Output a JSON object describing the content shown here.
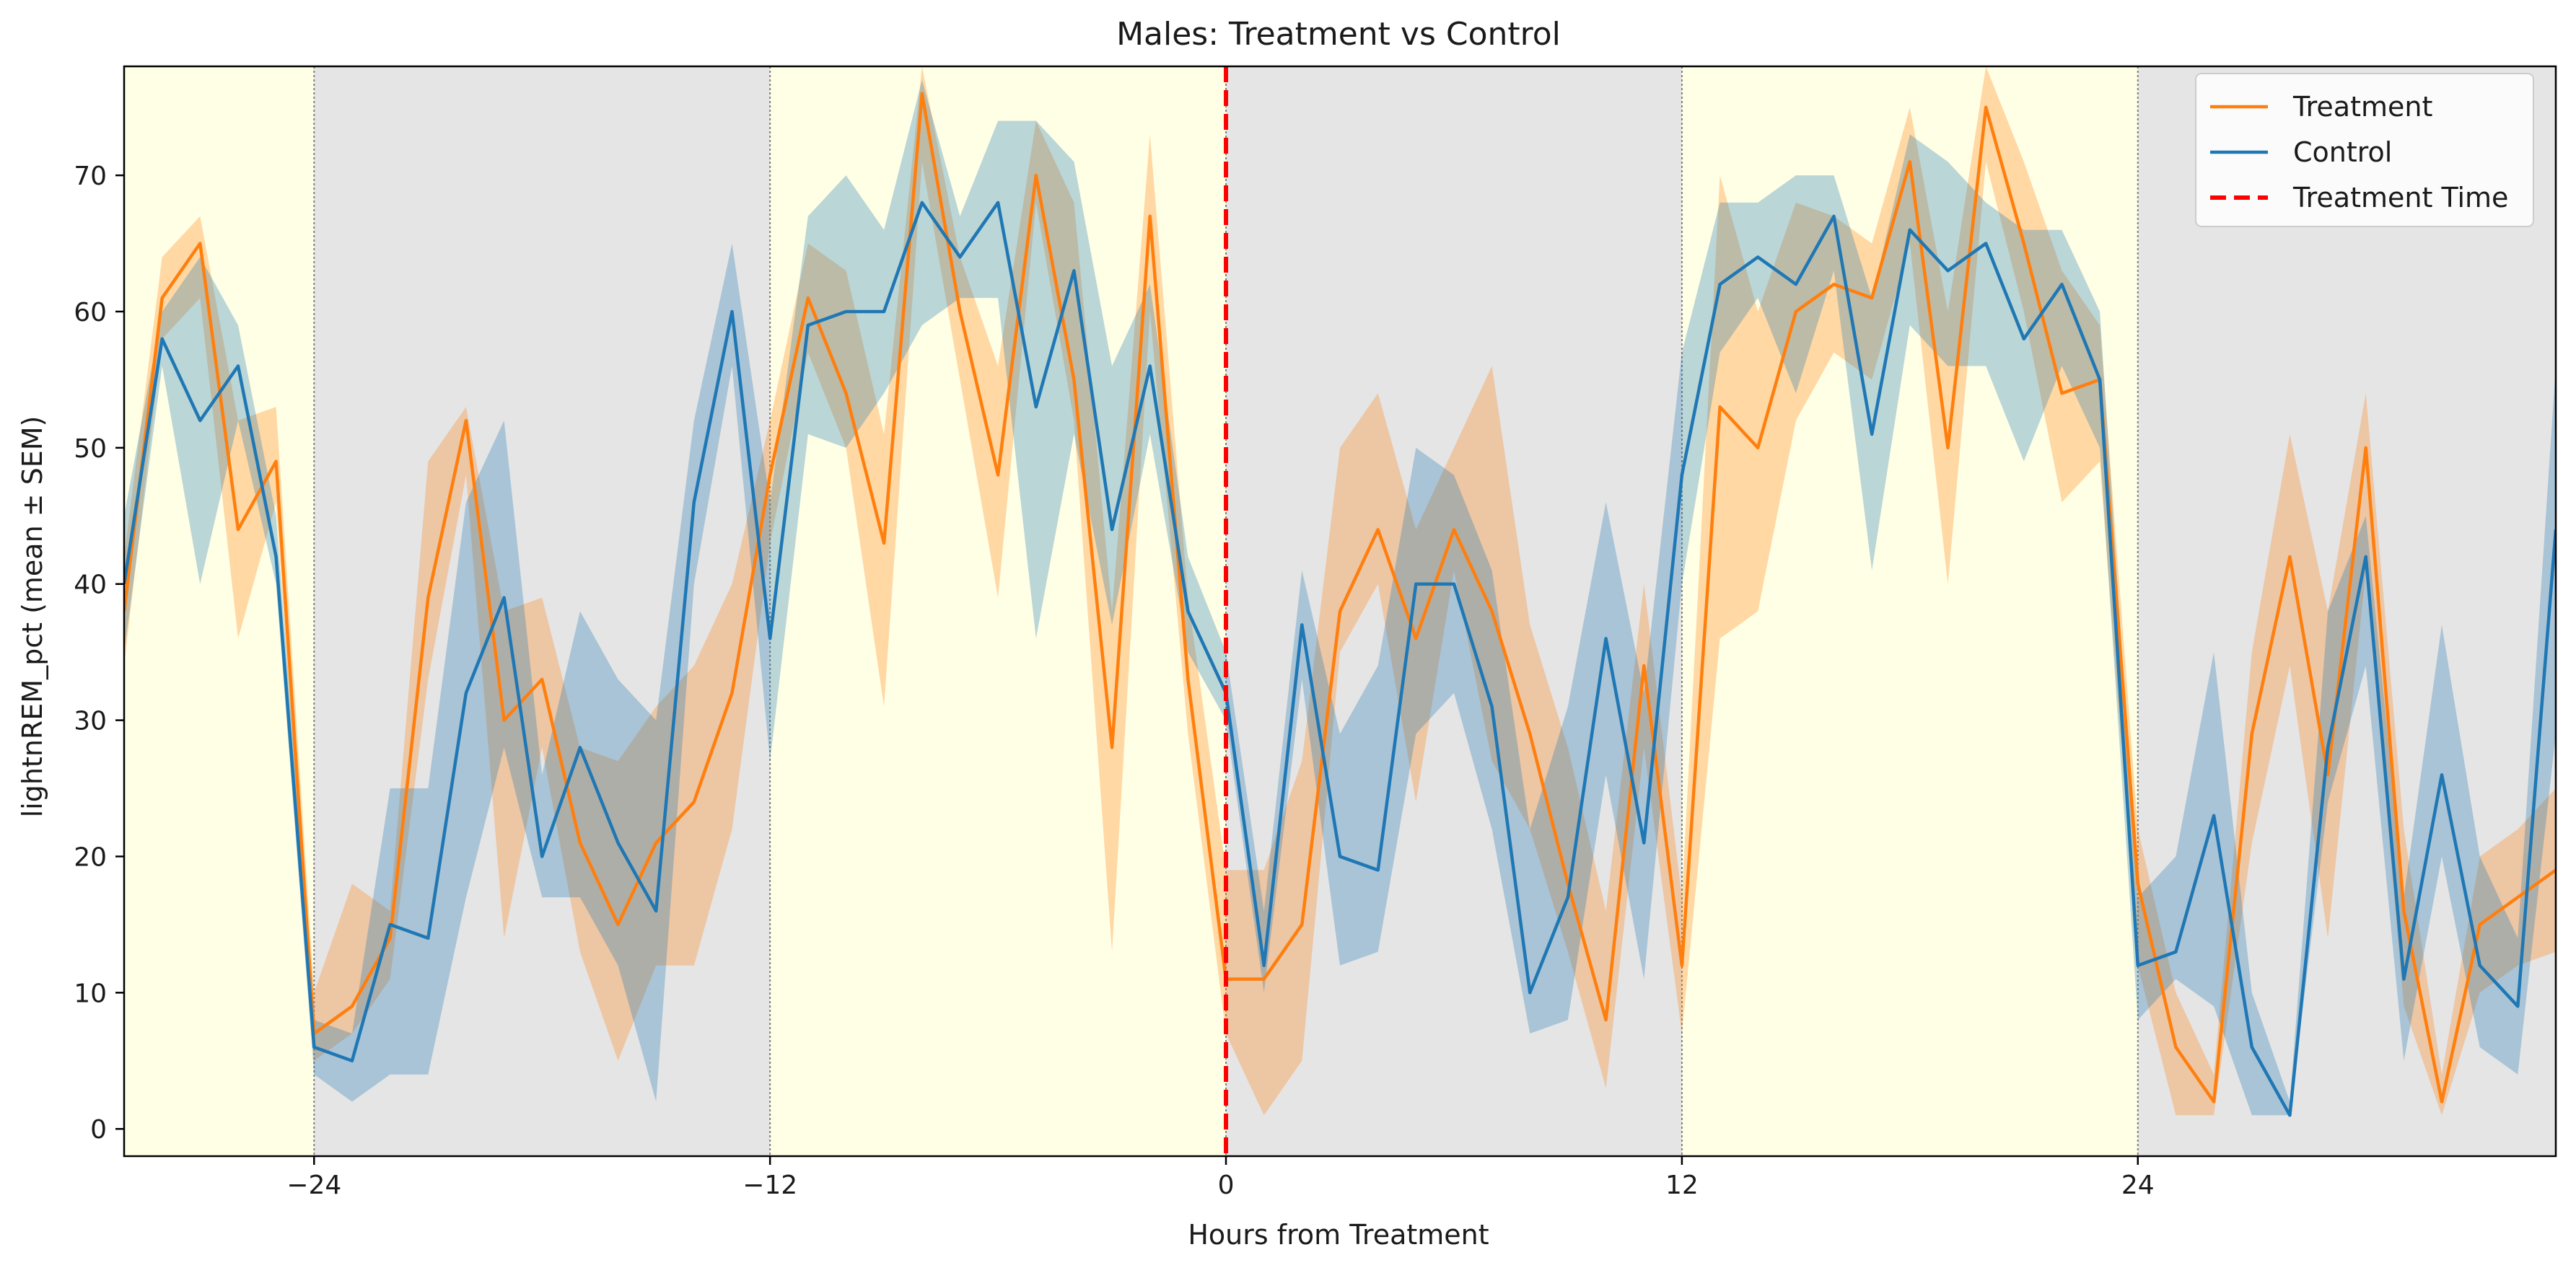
{
  "chart_data": {
    "type": "line",
    "title": "Males: Treatment vs Control",
    "xlabel": "Hours from Treatment",
    "ylabel": "lightnREM_pct (mean ± SEM)",
    "xlim": [
      -29,
      35
    ],
    "ylim": [
      -2,
      78
    ],
    "xticks": [
      -24,
      -12,
      0,
      12,
      24
    ],
    "xtick_labels": [
      "−24",
      "−12",
      "0",
      "12",
      "24"
    ],
    "yticks": [
      0,
      10,
      20,
      30,
      40,
      50,
      60,
      70
    ],
    "grid": false,
    "legend": {
      "placement": "top-right",
      "entries": [
        "Treatment",
        "Control",
        "Treatment Time"
      ]
    },
    "treatment_time": 0,
    "phases": [
      {
        "start": -29,
        "end": -24,
        "kind": "light"
      },
      {
        "start": -24,
        "end": -12,
        "kind": "dark"
      },
      {
        "start": -12,
        "end": 0,
        "kind": "light"
      },
      {
        "start": 0,
        "end": 12,
        "kind": "dark"
      },
      {
        "start": 12,
        "end": 24,
        "kind": "light"
      },
      {
        "start": 24,
        "end": 35,
        "kind": "dark"
      }
    ],
    "x": [
      -29,
      -28,
      -27,
      -26,
      -25,
      -24,
      -23,
      -22,
      -21,
      -20,
      -19,
      -18,
      -17,
      -16,
      -15,
      -14,
      -13,
      -12,
      -11,
      -10,
      -9,
      -8,
      -7,
      -6,
      -5,
      -4,
      -3,
      -2,
      -1,
      0,
      1,
      2,
      3,
      4,
      5,
      6,
      7,
      8,
      9,
      10,
      11,
      12,
      13,
      14,
      15,
      16,
      17,
      18,
      19,
      20,
      21,
      22,
      23,
      24,
      25,
      26,
      27,
      28,
      29,
      30,
      31,
      32,
      33,
      34,
      35
    ],
    "series": [
      {
        "name": "Treatment",
        "color": "#ff7f0e",
        "mean": [
          38,
          61,
          65,
          44,
          49,
          7,
          9,
          14,
          39,
          52,
          30,
          33,
          21,
          15,
          21,
          24,
          32,
          48,
          61,
          54,
          43,
          76,
          60,
          48,
          70,
          55,
          28,
          67,
          33,
          11,
          11,
          15,
          38,
          44,
          36,
          44,
          38,
          29,
          18,
          8,
          34,
          12,
          53,
          50,
          60,
          62,
          61,
          71,
          50,
          75,
          65,
          54,
          55,
          18,
          6,
          2,
          29,
          42,
          26,
          50,
          16,
          2,
          15,
          17,
          19
        ],
        "sem_low": [
          34,
          58,
          61,
          36,
          46,
          5,
          7,
          11,
          33,
          48,
          14,
          28,
          13,
          5,
          12,
          12,
          22,
          43,
          57,
          50,
          31,
          71,
          55,
          39,
          68,
          52,
          13,
          60,
          29,
          7,
          1,
          5,
          35,
          40,
          24,
          41,
          27,
          22,
          13,
          3,
          28,
          7,
          36,
          38,
          52,
          57,
          55,
          65,
          40,
          71,
          60,
          46,
          49,
          12,
          1,
          1,
          21,
          34,
          14,
          41,
          9,
          1,
          10,
          12,
          13
        ],
        "sem_high": [
          42,
          64,
          67,
          52,
          53,
          10,
          18,
          16,
          49,
          53,
          38,
          39,
          28,
          27,
          31,
          34,
          40,
          52,
          65,
          63,
          51,
          78,
          64,
          56,
          74,
          68,
          38,
          73,
          39,
          19,
          19,
          27,
          50,
          54,
          44,
          50,
          56,
          37,
          28,
          16,
          40,
          17,
          70,
          60,
          68,
          67,
          65,
          75,
          60,
          78,
          71,
          63,
          59,
          22,
          10,
          4,
          35,
          51,
          38,
          54,
          22,
          4,
          20,
          22,
          25
        ]
      },
      {
        "name": "Control",
        "color": "#1f77b4",
        "mean": [
          40,
          58,
          52,
          56,
          42,
          6,
          5,
          15,
          14,
          32,
          39,
          20,
          28,
          21,
          16,
          46,
          60,
          36,
          59,
          60,
          60,
          68,
          64,
          68,
          53,
          63,
          44,
          56,
          38,
          32,
          12,
          37,
          20,
          19,
          40,
          40,
          31,
          10,
          17,
          36,
          21,
          48,
          62,
          64,
          62,
          67,
          51,
          66,
          63,
          65,
          58,
          62,
          55,
          12,
          13,
          23,
          6,
          1,
          28,
          42,
          11,
          26,
          12,
          9,
          44
        ],
        "sem_low": [
          35,
          56,
          40,
          52,
          40,
          4,
          2,
          4,
          4,
          17,
          28,
          17,
          17,
          12,
          2,
          40,
          56,
          27,
          51,
          50,
          54,
          59,
          61,
          61,
          36,
          51,
          37,
          51,
          35,
          30,
          10,
          33,
          12,
          13,
          29,
          32,
          22,
          7,
          8,
          26,
          11,
          40,
          57,
          61,
          54,
          63,
          41,
          59,
          56,
          56,
          49,
          56,
          50,
          8,
          11,
          9,
          1,
          1,
          24,
          34,
          5,
          20,
          6,
          4,
          29
        ],
        "sem_high": [
          45,
          60,
          64,
          59,
          45,
          8,
          7,
          25,
          25,
          46,
          52,
          26,
          38,
          33,
          30,
          52,
          65,
          46,
          67,
          70,
          66,
          77,
          67,
          74,
          74,
          71,
          56,
          62,
          42,
          35,
          16,
          41,
          29,
          34,
          50,
          48,
          41,
          22,
          31,
          46,
          32,
          57,
          68,
          68,
          70,
          70,
          61,
          73,
          71,
          68,
          66,
          66,
          60,
          17,
          20,
          35,
          10,
          2,
          38,
          45,
          17,
          37,
          20,
          14,
          56
        ]
      }
    ]
  },
  "colors": {
    "light_phase": "#ffffe6",
    "dark_phase": "#e5e5e5",
    "phase_boundary": "#7f7f7f",
    "treatment_line": "#ff0000",
    "axis": "#000000"
  }
}
